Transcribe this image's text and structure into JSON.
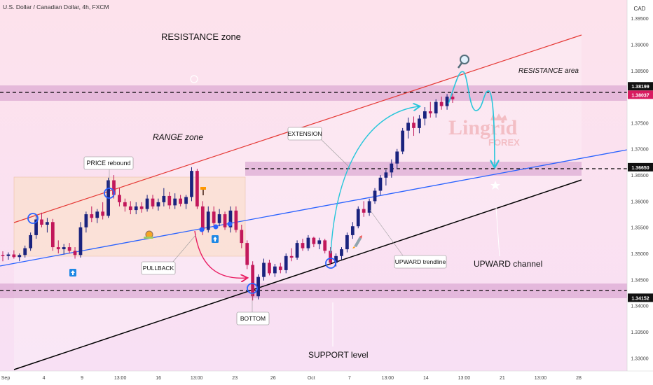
{
  "header": {
    "symbol_title": "U.S. Dollar / Canadian Dollar, 4h, FXCM",
    "currency": "CAD"
  },
  "annotations": {
    "resistance_zone": "RESISTANCE zone",
    "resistance_area": "RESISTANCE area",
    "range_zone": "RANGE zone",
    "price_rebound": "PRICE rebound",
    "extension": "EXTENSION",
    "pullback": "PULLBACK",
    "upward_trendline": "UPWARD trendline",
    "upward_channel": "UPWARD channel",
    "bottom": "BOTTOM",
    "support_level": "SUPPORT level"
  },
  "watermark": {
    "brand": "Lingrid",
    "sub": "FOREX"
  },
  "colors": {
    "background": "#fbe7f1",
    "bull": "#ffffff",
    "bear": "#d81b60",
    "range_fill": "#fbe0cf",
    "zone_fill": "#d9a3cf",
    "resistance_line": "#e53935",
    "support_line": "#000000",
    "trend_line": "#2962ff",
    "arrow_teal": "#26c6da",
    "arrow_pink": "#e91e63"
  },
  "chart_data": {
    "type": "candlestick",
    "yaxis": {
      "side": "right",
      "ticks": [
        "1.39500",
        "1.39000",
        "1.38500",
        "1.38000",
        "1.37500",
        "1.37000",
        "1.36500",
        "1.36000",
        "1.35500",
        "1.35000",
        "1.34500",
        "1.34000",
        "1.33500",
        "1.33000"
      ],
      "ylim": [
        1.3275,
        1.3985
      ]
    },
    "xaxis": {
      "ticks": [
        "Sep",
        "4",
        "9",
        "13:00",
        "16",
        "13:00",
        "23",
        "26",
        "Oct",
        "7",
        "13:00",
        "14",
        "13:00",
        "21",
        "13:00",
        "28"
      ]
    },
    "price_tags": [
      {
        "label": "1.38199",
        "value": 1.38199,
        "style": "dark"
      },
      {
        "label": "1.38037",
        "value": 1.38037,
        "style": "red"
      },
      {
        "label": "1.36650",
        "value": 1.3665,
        "style": "dark"
      },
      {
        "label": "1.34152",
        "value": 1.34152,
        "style": "dark"
      }
    ],
    "levels": [
      1.38199,
      1.3665,
      1.34152
    ],
    "candles": [
      [
        1.3497,
        1.3504,
        1.3485,
        1.3495
      ],
      [
        1.3495,
        1.3502,
        1.3488,
        1.3498
      ],
      [
        1.3498,
        1.3506,
        1.349,
        1.3493
      ],
      [
        1.3493,
        1.35,
        1.3485,
        1.3497
      ],
      [
        1.3497,
        1.3515,
        1.3492,
        1.351
      ],
      [
        1.351,
        1.354,
        1.3505,
        1.3535
      ],
      [
        1.3535,
        1.3572,
        1.3528,
        1.3565
      ],
      [
        1.3565,
        1.3578,
        1.355,
        1.3555
      ],
      [
        1.3555,
        1.3568,
        1.354,
        1.356
      ],
      [
        1.356,
        1.3566,
        1.3505,
        1.3512
      ],
      [
        1.3512,
        1.3525,
        1.35,
        1.3508
      ],
      [
        1.3508,
        1.3518,
        1.3498,
        1.3512
      ],
      [
        1.3512,
        1.352,
        1.35,
        1.3505
      ],
      [
        1.3505,
        1.3512,
        1.349,
        1.3497
      ],
      [
        1.3497,
        1.356,
        1.3492,
        1.355
      ],
      [
        1.355,
        1.358,
        1.354,
        1.3575
      ],
      [
        1.3575,
        1.359,
        1.356,
        1.3568
      ],
      [
        1.3568,
        1.3585,
        1.3558,
        1.358
      ],
      [
        1.358,
        1.3598,
        1.3565,
        1.3572
      ],
      [
        1.3572,
        1.3645,
        1.3568,
        1.364
      ],
      [
        1.364,
        1.365,
        1.3605,
        1.3612
      ],
      [
        1.3612,
        1.3625,
        1.359,
        1.3598
      ],
      [
        1.3598,
        1.3605,
        1.358,
        1.359
      ],
      [
        1.359,
        1.36,
        1.3575,
        1.3583
      ],
      [
        1.3583,
        1.3598,
        1.3575,
        1.359
      ],
      [
        1.359,
        1.3598,
        1.3578,
        1.3585
      ],
      [
        1.3585,
        1.3612,
        1.358,
        1.3605
      ],
      [
        1.3605,
        1.3612,
        1.3585,
        1.359
      ],
      [
        1.359,
        1.3605,
        1.3582,
        1.3598
      ],
      [
        1.3598,
        1.3625,
        1.359,
        1.361
      ],
      [
        1.361,
        1.3618,
        1.3585,
        1.3592
      ],
      [
        1.3592,
        1.3615,
        1.3585,
        1.3605
      ],
      [
        1.3605,
        1.3612,
        1.359,
        1.3595
      ],
      [
        1.3595,
        1.3612,
        1.3585,
        1.3608
      ],
      [
        1.3608,
        1.3665,
        1.36,
        1.3658
      ],
      [
        1.3658,
        1.3662,
        1.3585,
        1.359
      ],
      [
        1.359,
        1.36,
        1.3535,
        1.3545
      ],
      [
        1.3545,
        1.359,
        1.354,
        1.358
      ],
      [
        1.358,
        1.359,
        1.355,
        1.3558
      ],
      [
        1.3558,
        1.3585,
        1.3552,
        1.3575
      ],
      [
        1.3575,
        1.358,
        1.3545,
        1.355
      ],
      [
        1.355,
        1.359,
        1.354,
        1.3582
      ],
      [
        1.3582,
        1.359,
        1.354,
        1.3545
      ],
      [
        1.3545,
        1.3555,
        1.351,
        1.352
      ],
      [
        1.352,
        1.3525,
        1.347,
        1.3478
      ],
      [
        1.3478,
        1.3485,
        1.341,
        1.3418
      ],
      [
        1.3418,
        1.346,
        1.3412,
        1.3455
      ],
      [
        1.3455,
        1.349,
        1.3448,
        1.3482
      ],
      [
        1.3482,
        1.3488,
        1.3458,
        1.3462
      ],
      [
        1.3462,
        1.348,
        1.3455,
        1.3475
      ],
      [
        1.3475,
        1.3482,
        1.3462,
        1.3468
      ],
      [
        1.3468,
        1.35,
        1.3462,
        1.3495
      ],
      [
        1.3495,
        1.351,
        1.3485,
        1.3492
      ],
      [
        1.3492,
        1.3525,
        1.3488,
        1.352
      ],
      [
        1.352,
        1.3528,
        1.3505,
        1.351
      ],
      [
        1.351,
        1.3535,
        1.3505,
        1.353
      ],
      [
        1.353,
        1.3532,
        1.3512,
        1.3518
      ],
      [
        1.3518,
        1.353,
        1.3508,
        1.3525
      ],
      [
        1.3525,
        1.3528,
        1.35,
        1.3505
      ],
      [
        1.3505,
        1.3512,
        1.3478,
        1.3482
      ],
      [
        1.3482,
        1.35,
        1.3475,
        1.3495
      ],
      [
        1.3495,
        1.3512,
        1.3488,
        1.3508
      ],
      [
        1.3508,
        1.354,
        1.3502,
        1.3535
      ],
      [
        1.3535,
        1.356,
        1.3528,
        1.3552
      ],
      [
        1.3552,
        1.359,
        1.3548,
        1.3585
      ],
      [
        1.3585,
        1.36,
        1.357,
        1.3578
      ],
      [
        1.3578,
        1.3605,
        1.3572,
        1.36
      ],
      [
        1.36,
        1.3625,
        1.3595,
        1.362
      ],
      [
        1.362,
        1.365,
        1.3612,
        1.3645
      ],
      [
        1.3645,
        1.366,
        1.363,
        1.3655
      ],
      [
        1.3655,
        1.368,
        1.3645,
        1.3672
      ],
      [
        1.3672,
        1.37,
        1.3662,
        1.3695
      ],
      [
        1.3695,
        1.374,
        1.369,
        1.3735
      ],
      [
        1.3735,
        1.376,
        1.372,
        1.375
      ],
      [
        1.375,
        1.3762,
        1.3725,
        1.374
      ],
      [
        1.374,
        1.3765,
        1.373,
        1.3758
      ],
      [
        1.3758,
        1.378,
        1.3745,
        1.3772
      ],
      [
        1.3772,
        1.379,
        1.376,
        1.3768
      ],
      [
        1.3768,
        1.3795,
        1.376,
        1.379
      ],
      [
        1.379,
        1.38,
        1.3775,
        1.3782
      ],
      [
        1.3782,
        1.3805,
        1.3775,
        1.38
      ],
      [
        1.38,
        1.3806,
        1.3788,
        1.3795
      ]
    ]
  }
}
